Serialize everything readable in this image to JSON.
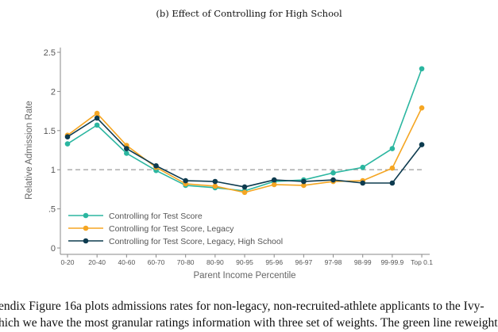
{
  "subcaption": "(b) Effect of Controlling for High School",
  "body_text": [
    "endix Figure 16a plots admissions rates for non-legacy, non-recruited-athlete applicants to the Ivy-",
    "hich we have the most granular ratings information with three set of weights. The green line reweight"
  ],
  "chart_data": {
    "type": "line",
    "title": "(b) Effect of Controlling for High School",
    "xlabel": "Parent Income Percentile",
    "ylabel": "Relative Admission Rate",
    "categories": [
      "0-20",
      "20-40",
      "40-60",
      "60-70",
      "70-80",
      "80-90",
      "90-95",
      "95-96",
      "96-97",
      "97-98",
      "98-99",
      "99-99.9",
      "Top 0.1"
    ],
    "yticks": [
      0,
      0.5,
      1,
      1.5,
      2,
      2.5
    ],
    "ytick_labels": [
      "0",
      ".5",
      "1",
      "1.5",
      "2",
      "2.5"
    ],
    "ylim": [
      0,
      2.5
    ],
    "reference_line": {
      "y": 1,
      "style": "dashed",
      "color": "#a6a6a6"
    },
    "grid": false,
    "legend_position": "bottom-left",
    "series": [
      {
        "name": "Controlling for Test Score",
        "color": "#2bb6a0",
        "values": [
          1.33,
          1.57,
          1.21,
          0.99,
          0.8,
          0.77,
          0.73,
          0.85,
          0.87,
          0.96,
          1.03,
          1.27,
          2.29
        ]
      },
      {
        "name": "Controlling for Test Score, Legacy",
        "color": "#f5a623",
        "values": [
          1.44,
          1.72,
          1.31,
          1.03,
          0.82,
          0.79,
          0.71,
          0.81,
          0.8,
          0.85,
          0.86,
          1.02,
          1.79
        ]
      },
      {
        "name": "Controlling for Test Score, Legacy, High School",
        "color": "#0d3b4f",
        "values": [
          1.42,
          1.66,
          1.27,
          1.05,
          0.86,
          0.85,
          0.78,
          0.87,
          0.85,
          0.87,
          0.83,
          0.83,
          1.32
        ]
      }
    ]
  }
}
